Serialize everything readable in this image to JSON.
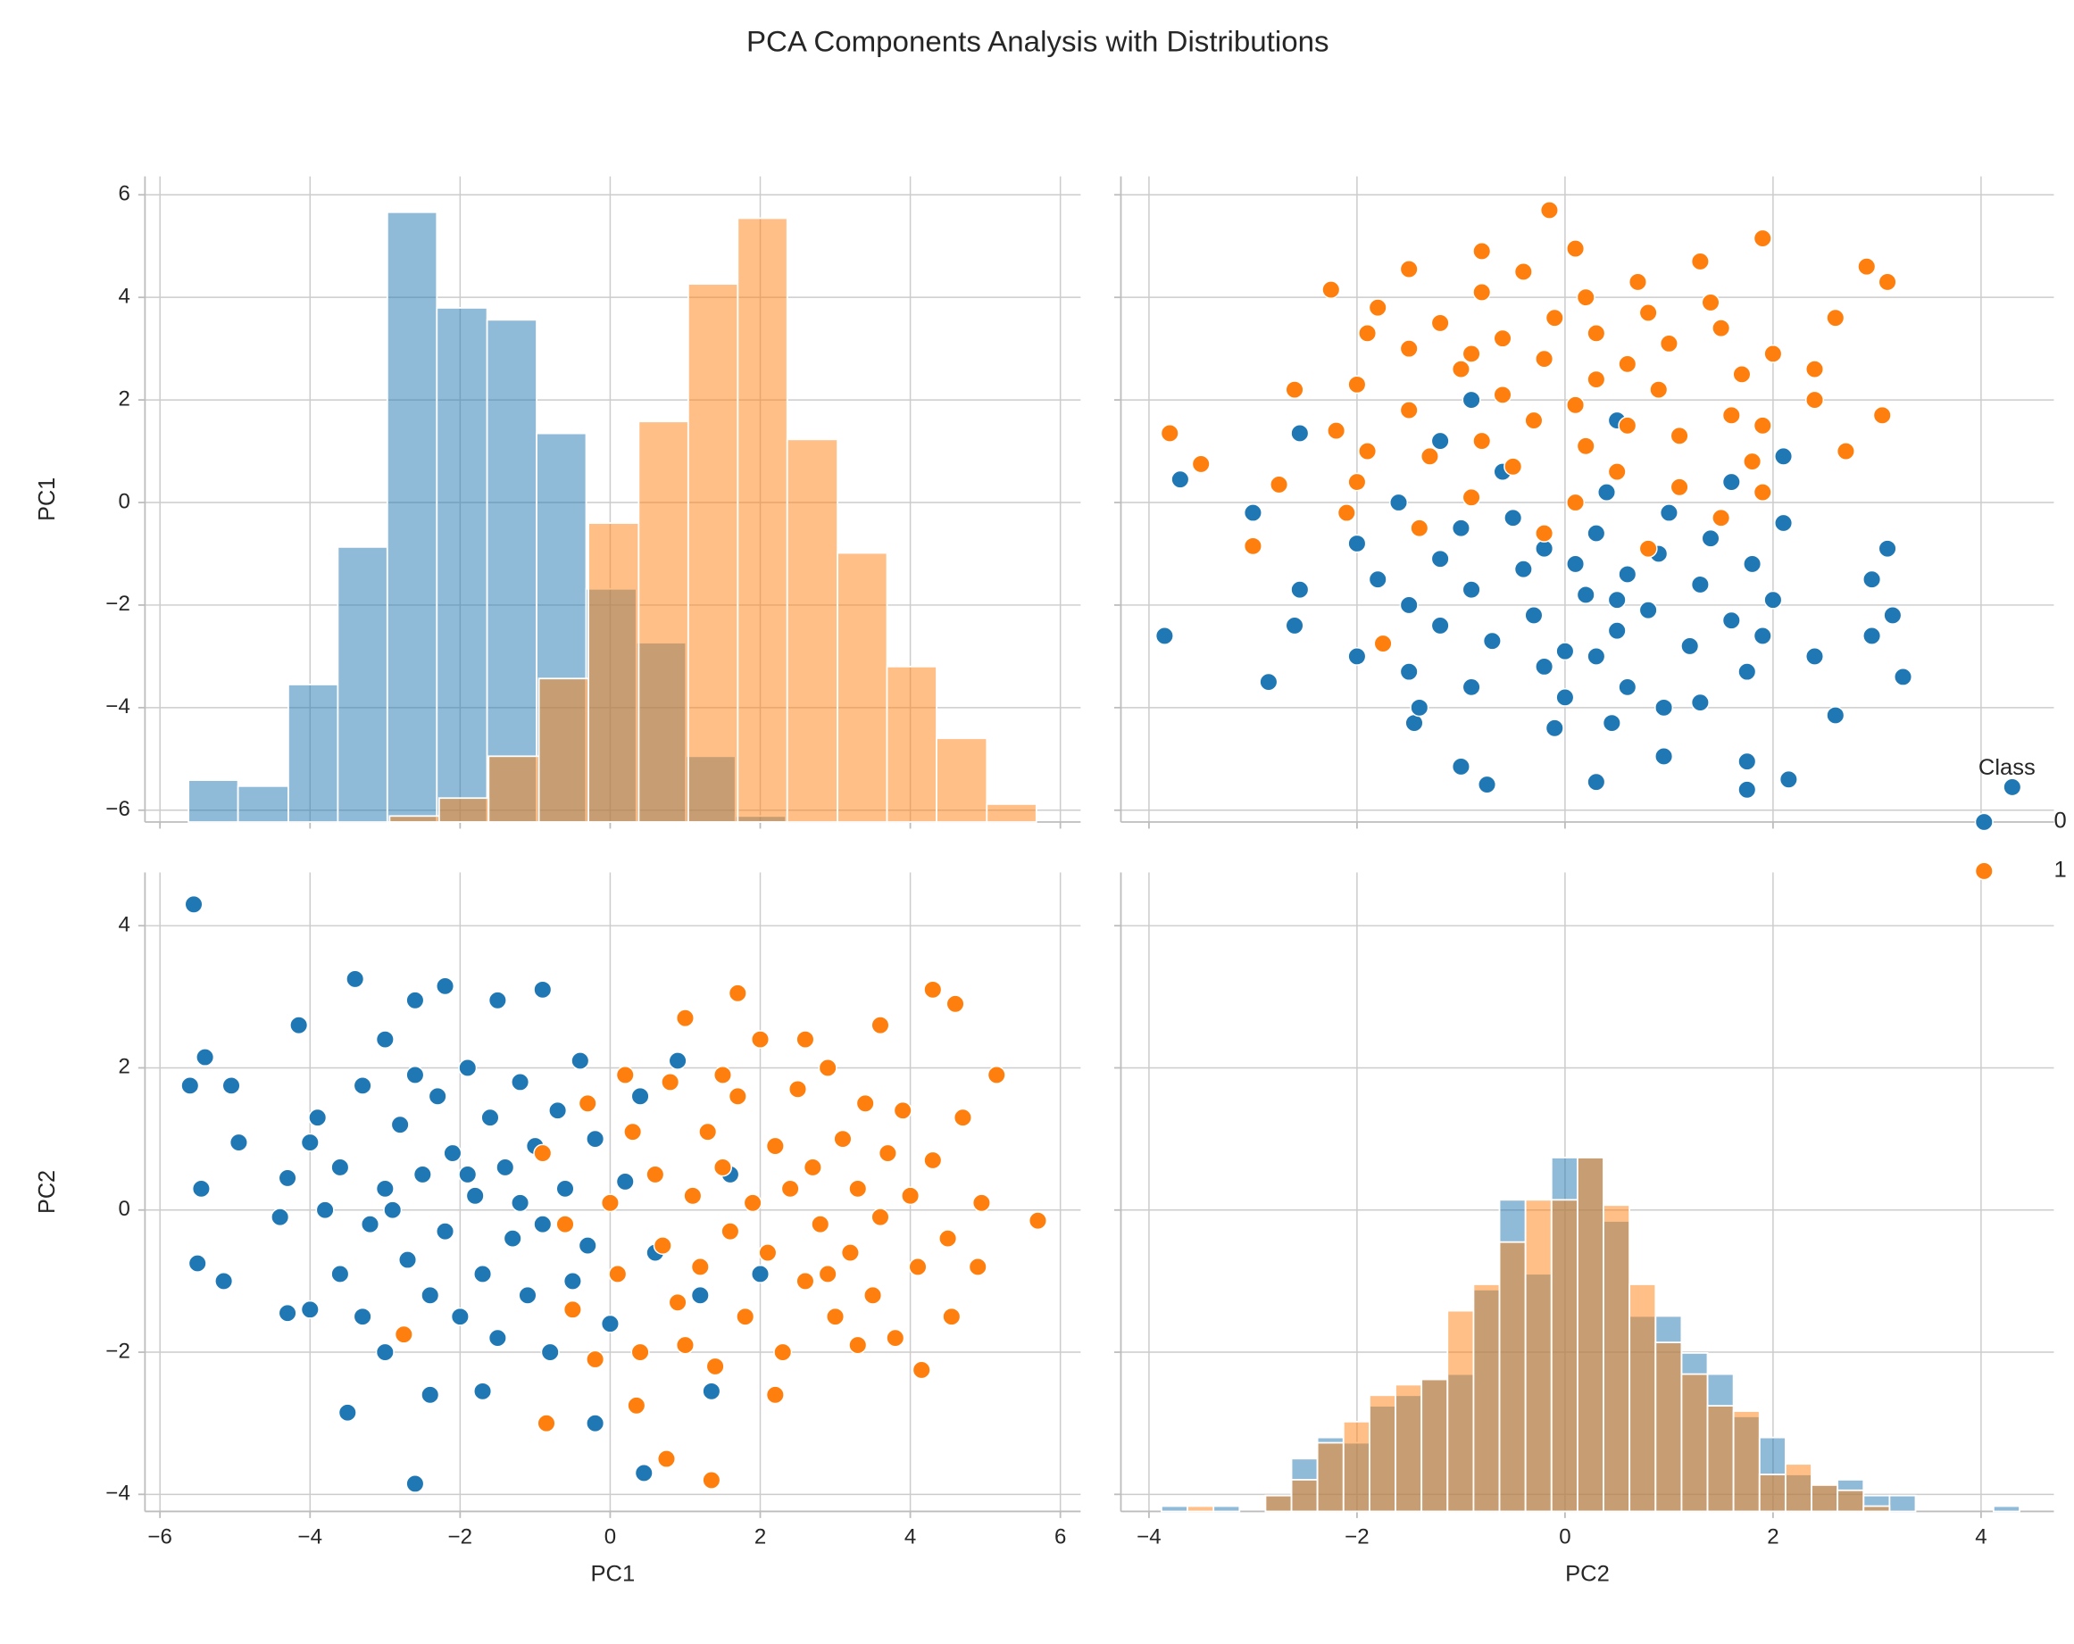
{
  "chart_data": {
    "type": "pairplot",
    "title": "PCA Components Analysis with Distributions",
    "variables": [
      "PC1",
      "PC2"
    ],
    "grid": true,
    "axes": {
      "PC1": {
        "xlim": [
          -6.2,
          6.27
        ],
        "ylim": [
          -6.23,
          6.36
        ],
        "count_lim": [
          0,
          108
        ],
        "ticks": [
          {
            "value": -6,
            "label": "−6"
          },
          {
            "value": -4,
            "label": "−4"
          },
          {
            "value": -2,
            "label": "−2"
          },
          0,
          2,
          4,
          6
        ]
      },
      "PC2": {
        "xlim": [
          -4.27,
          4.7
        ],
        "ylim": [
          -4.24,
          4.75
        ],
        "count_lim": [
          0,
          121
        ],
        "ticks": [
          {
            "value": -4,
            "label": "−4"
          },
          {
            "value": -2,
            "label": "−2"
          },
          0,
          2,
          4
        ]
      }
    },
    "legend": {
      "title": "Class",
      "corner": "right"
    },
    "series": [
      {
        "name": "0",
        "color": "#1f77b4",
        "PC1": [
          -5.55,
          -5.6,
          -5.4,
          -5.05,
          -4.95,
          -5.45,
          -5.5,
          -5.15,
          -4.3,
          -4.0,
          -4.15,
          -3.4,
          -3.5,
          -2.6,
          -0.2,
          0.45,
          1.35,
          -1.7,
          -4.4,
          -4.3,
          -4.0,
          -3.9,
          -3.6,
          -3.6,
          -3.3,
          -3.3,
          -3.0,
          -3.0,
          -3.0,
          -2.8,
          -2.7,
          -2.6,
          -2.5,
          -2.4,
          -2.3,
          -2.2,
          -2.2,
          -2.1,
          -2.0,
          -1.9,
          -1.8,
          -1.7,
          -1.6,
          -1.5,
          -1.5,
          -1.4,
          -1.3,
          -1.2,
          -1.1,
          -1.0,
          -0.9,
          -0.9,
          -0.8,
          -0.7,
          -0.6,
          -0.5,
          -0.4,
          -0.3,
          -0.2,
          0.0,
          0.2,
          0.4,
          0.6,
          0.9,
          1.2,
          1.6,
          2.0,
          -2.9,
          -2.4,
          -1.9,
          -1.2,
          -3.8,
          -2.6,
          -3.2
        ],
        "PC2": [
          4.3,
          1.75,
          2.15,
          1.75,
          0.95,
          0.3,
          -0.75,
          -1.0,
          -1.45,
          -1.4,
          2.6,
          3.25,
          -2.85,
          -3.85,
          -3.0,
          -3.7,
          -2.55,
          -2.55,
          -0.1,
          0.45,
          0.95,
          1.3,
          0.6,
          -0.9,
          1.75,
          -1.5,
          2.4,
          0.3,
          -2.0,
          1.2,
          -0.7,
          2.95,
          0.5,
          -2.6,
          1.6,
          3.15,
          -0.3,
          0.8,
          -1.5,
          2.0,
          0.2,
          -0.9,
          1.3,
          2.95,
          -1.8,
          0.6,
          -0.4,
          1.8,
          -1.2,
          0.9,
          3.1,
          -0.2,
          -2.0,
          1.4,
          0.3,
          -1.0,
          2.1,
          -0.5,
          1.0,
          -1.6,
          0.4,
          1.6,
          -0.6,
          2.1,
          -1.2,
          0.5,
          -0.9,
          0.0,
          -1.2,
          0.5,
          0.1,
          0.0,
          1.9,
          -0.2
        ],
        "hist": {
          "PC1": {
            "bins": [
              -5.62,
              -4.96,
              -4.29,
              -3.63,
              -2.97,
              -2.31,
              -1.64,
              -0.98,
              -0.32,
              0.35,
              1.01,
              1.67,
              2.34
            ],
            "counts": [
              7,
              6,
              23,
              46,
              102,
              86,
              84,
              65,
              39,
              30,
              11,
              1
            ]
          },
          "PC2": {
            "bins": [
              -3.88,
              -3.63,
              -3.38,
              -3.13,
              -2.88,
              -2.63,
              -2.38,
              -2.13,
              -1.88,
              -1.63,
              -1.38,
              -1.13,
              -0.88,
              -0.63,
              -0.38,
              -0.13,
              0.12,
              0.37,
              0.62,
              0.87,
              1.12,
              1.37,
              1.62,
              1.87,
              2.12,
              2.37,
              2.62,
              2.87,
              3.12,
              3.37,
              3.62,
              3.87,
              4.12,
              4.37
            ],
            "counts": [
              1,
              0,
              1,
              0,
              3,
              10,
              14,
              13,
              20,
              22,
              25,
              26,
              42,
              59,
              45,
              67,
              67,
              55,
              37,
              37,
              30,
              26,
              18,
              14,
              7,
              5,
              6,
              3,
              3,
              0,
              0,
              0,
              1
            ]
          }
        }
      },
      {
        "name": "1",
        "color": "#ff7f0e",
        "PC1": [
          5.7,
          5.15,
          4.3,
          4.6,
          4.15,
          1.35,
          0.75,
          -2.75,
          -0.85,
          1.7,
          3.6,
          4.95,
          4.55,
          0.35,
          -0.9,
          -0.6,
          -0.5,
          -0.3,
          0.0,
          0.1,
          0.3,
          0.4,
          0.6,
          0.7,
          0.8,
          0.9,
          1.0,
          1.1,
          1.2,
          1.3,
          1.4,
          1.5,
          1.6,
          1.7,
          1.8,
          1.9,
          2.0,
          2.1,
          2.2,
          2.3,
          2.4,
          2.5,
          2.6,
          2.7,
          2.8,
          2.9,
          3.0,
          3.1,
          3.2,
          3.3,
          3.4,
          3.5,
          3.6,
          3.7,
          3.8,
          3.9,
          4.0,
          4.1,
          4.3,
          4.5,
          4.7,
          4.9,
          2.6,
          1.0,
          0.2,
          2.2,
          3.3,
          -0.2,
          1.5,
          2.9
        ],
        "PC2": [
          -0.15,
          1.9,
          3.1,
          2.9,
          -2.25,
          -3.8,
          -3.5,
          -1.75,
          -3.0,
          3.05,
          2.6,
          0.1,
          -1.5,
          -2.75,
          0.8,
          -0.2,
          -1.4,
          1.5,
          0.1,
          -0.9,
          1.1,
          -2.0,
          0.5,
          -0.5,
          1.8,
          -1.3,
          2.7,
          0.2,
          -0.8,
          1.1,
          -2.2,
          0.6,
          -0.3,
          1.6,
          -1.5,
          0.1,
          2.4,
          -0.6,
          0.9,
          -2.0,
          0.3,
          1.7,
          -1.0,
          0.6,
          -0.2,
          2.0,
          -1.5,
          1.0,
          -0.6,
          0.3,
          1.5,
          -1.2,
          -0.1,
          0.8,
          -1.8,
          1.4,
          0.2,
          -0.8,
          0.7,
          -0.4,
          1.3,
          -0.8,
          2.4,
          -1.9,
          1.9,
          -2.6,
          -1.9,
          -2.1,
          1.9,
          -0.9
        ],
        "hist": {
          "PC1": {
            "bins": [
              -2.94,
              -2.28,
              -1.62,
              -0.95,
              -0.29,
              0.38,
              1.04,
              1.7,
              2.36,
              3.03,
              3.69,
              4.35,
              5.02,
              5.68
            ],
            "counts": [
              1,
              4,
              11,
              24,
              50,
              67,
              90,
              101,
              64,
              45,
              26,
              14,
              3
            ]
          },
          "PC2": {
            "bins": [
              -3.88,
              -3.63,
              -3.38,
              -3.13,
              -2.88,
              -2.63,
              -2.38,
              -2.13,
              -1.88,
              -1.63,
              -1.38,
              -1.13,
              -0.88,
              -0.63,
              -0.38,
              -0.13,
              0.12,
              0.37,
              0.62,
              0.87,
              1.12,
              1.37,
              1.62,
              1.87,
              2.12,
              2.37,
              2.62,
              2.87,
              3.12,
              3.37,
              3.62,
              3.87,
              4.12,
              4.37
            ],
            "counts": [
              0,
              1,
              0,
              0,
              3,
              6,
              13,
              17,
              22,
              24,
              25,
              38,
              43,
              51,
              59,
              59,
              67,
              58,
              43,
              32,
              26,
              20,
              19,
              7,
              9,
              5,
              4,
              1,
              0,
              0,
              0,
              0,
              0
            ]
          }
        }
      }
    ]
  }
}
